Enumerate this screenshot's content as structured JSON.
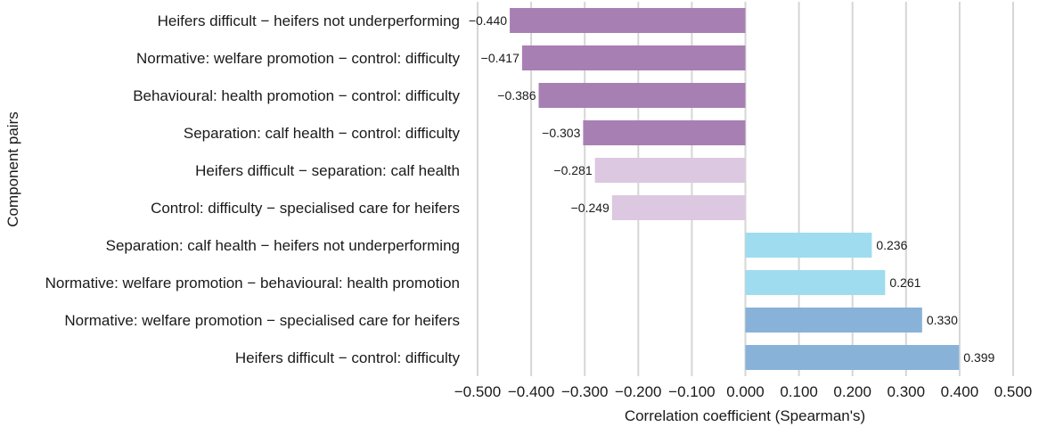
{
  "chart_data": {
    "type": "bar",
    "orientation": "horizontal",
    "title": "",
    "xlabel": "Correlation coefficient (Spearman's)",
    "ylabel": "Component pairs",
    "xlim": [
      -0.5,
      0.5
    ],
    "xticks": [
      "−0.500",
      "−0.400",
      "−0.300",
      "−0.200",
      "−0.100",
      "0.000",
      "0.100",
      "0.200",
      "0.300",
      "0.400",
      "0.500"
    ],
    "xtick_values": [
      -0.5,
      -0.4,
      -0.3,
      -0.2,
      -0.1,
      0.0,
      0.1,
      0.2,
      0.3,
      0.4,
      0.5
    ],
    "grid": true,
    "categories": [
      "Heifers difficult − heifers not underperforming",
      "Normative: welfare promotion − control: difficulty",
      "Behavioural: health promotion − control: difficulty",
      "Separation: calf health − control: difficulty",
      "Heifers difficult − separation: calf health",
      "Control: difficulty − specialised care for heifers",
      "Separation: calf health − heifers not underperforming",
      "Normative: welfare promotion − behavioural: health promotion",
      "Normative: welfare promotion − specialised care for heifers",
      "Heifers difficult − control: difficulty"
    ],
    "values": [
      -0.44,
      -0.417,
      -0.386,
      -0.303,
      -0.281,
      -0.249,
      0.236,
      0.261,
      0.33,
      0.399
    ],
    "value_labels": [
      "−0.440",
      "−0.417",
      "−0.386",
      "−0.303",
      "−0.281",
      "−0.249",
      "0.236",
      "0.261",
      "0.330",
      "0.399"
    ],
    "bar_colors": [
      "#a87fb3",
      "#a87fb3",
      "#a87fb3",
      "#a87fb3",
      "#dcc8e0",
      "#dcc8e0",
      "#9fdcef",
      "#9fdcef",
      "#88b2d8",
      "#88b2d8"
    ]
  }
}
